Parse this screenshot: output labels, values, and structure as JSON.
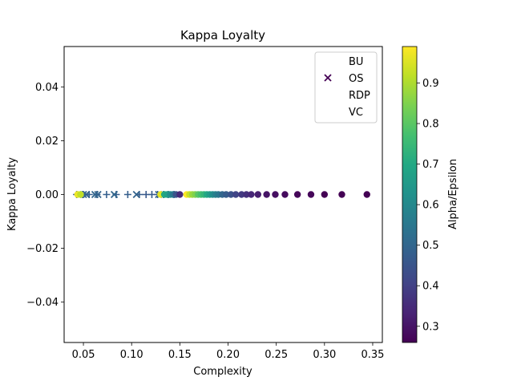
{
  "chart_data": {
    "type": "scatter",
    "title": "Kappa Loyalty",
    "xlabel": "Complexity",
    "ylabel": "Kappa Loyalty",
    "xlim": [
      0.03,
      0.36
    ],
    "ylim": [
      -0.055,
      0.055
    ],
    "xticks": [
      "0.05",
      "0.10",
      "0.15",
      "0.20",
      "0.25",
      "0.30",
      "0.35"
    ],
    "yticks": [
      "−0.04",
      "−0.02",
      "0.00",
      "0.02",
      "0.04"
    ],
    "grid": false,
    "legend_position": "top-right",
    "colorbar": {
      "label": "Alpha/Epsilon",
      "range": [
        0.26,
        0.99
      ],
      "ticks": [
        "0.3",
        "0.4",
        "0.5",
        "0.6",
        "0.7",
        "0.8",
        "0.9"
      ],
      "colormap": "viridis"
    },
    "series": [
      {
        "name": "BU",
        "marker": "plus",
        "points": [
          {
            "x": 0.043,
            "y": 0,
            "c": 0.46
          },
          {
            "x": 0.049,
            "y": 0,
            "c": 0.47
          },
          {
            "x": 0.056,
            "y": 0,
            "c": 0.48
          },
          {
            "x": 0.064,
            "y": 0,
            "c": 0.47
          },
          {
            "x": 0.074,
            "y": 0,
            "c": 0.48
          },
          {
            "x": 0.084,
            "y": 0,
            "c": 0.47
          },
          {
            "x": 0.096,
            "y": 0,
            "c": 0.48
          },
          {
            "x": 0.108,
            "y": 0,
            "c": 0.47
          },
          {
            "x": 0.115,
            "y": 0,
            "c": 0.46
          },
          {
            "x": 0.121,
            "y": 0,
            "c": 0.47
          },
          {
            "x": 0.127,
            "y": 0,
            "c": 0.46
          },
          {
            "x": 0.133,
            "y": 0,
            "c": 0.48
          },
          {
            "x": 0.138,
            "y": 0,
            "c": 0.47
          },
          {
            "x": 0.144,
            "y": 0,
            "c": 0.45
          }
        ]
      },
      {
        "name": "OS",
        "marker": "x",
        "points": [
          {
            "x": 0.046,
            "y": 0,
            "c": 0.49
          },
          {
            "x": 0.05,
            "y": 0,
            "c": 0.5
          },
          {
            "x": 0.053,
            "y": 0,
            "c": 0.49
          },
          {
            "x": 0.062,
            "y": 0,
            "c": 0.5
          },
          {
            "x": 0.065,
            "y": 0,
            "c": 0.49
          },
          {
            "x": 0.082,
            "y": 0,
            "c": 0.5
          },
          {
            "x": 0.105,
            "y": 0,
            "c": 0.49
          },
          {
            "x": 0.128,
            "y": 0,
            "c": 0.5
          },
          {
            "x": 0.141,
            "y": 0,
            "c": 0.49
          }
        ]
      },
      {
        "name": "RDP",
        "marker": "circle",
        "points": [
          {
            "x": 0.044,
            "y": 0,
            "c": 0.97
          },
          {
            "x": 0.047,
            "y": 0,
            "c": 0.92
          },
          {
            "x": 0.13,
            "y": 0,
            "c": 0.96
          },
          {
            "x": 0.134,
            "y": 0,
            "c": 0.7
          },
          {
            "x": 0.137,
            "y": 0,
            "c": 0.68
          },
          {
            "x": 0.14,
            "y": 0,
            "c": 0.62
          },
          {
            "x": 0.143,
            "y": 0,
            "c": 0.55
          },
          {
            "x": 0.146,
            "y": 0,
            "c": 0.45
          },
          {
            "x": 0.15,
            "y": 0,
            "c": 0.35
          },
          {
            "x": 0.157,
            "y": 0,
            "c": 0.99
          },
          {
            "x": 0.16,
            "y": 0,
            "c": 0.93
          },
          {
            "x": 0.163,
            "y": 0,
            "c": 0.88
          },
          {
            "x": 0.166,
            "y": 0,
            "c": 0.85
          },
          {
            "x": 0.169,
            "y": 0,
            "c": 0.8
          },
          {
            "x": 0.172,
            "y": 0,
            "c": 0.77
          },
          {
            "x": 0.175,
            "y": 0,
            "c": 0.74
          },
          {
            "x": 0.178,
            "y": 0,
            "c": 0.7
          },
          {
            "x": 0.181,
            "y": 0,
            "c": 0.66
          },
          {
            "x": 0.184,
            "y": 0,
            "c": 0.62
          },
          {
            "x": 0.187,
            "y": 0,
            "c": 0.58
          },
          {
            "x": 0.19,
            "y": 0,
            "c": 0.55
          },
          {
            "x": 0.194,
            "y": 0,
            "c": 0.5
          },
          {
            "x": 0.198,
            "y": 0,
            "c": 0.47
          },
          {
            "x": 0.203,
            "y": 0,
            "c": 0.44
          },
          {
            "x": 0.208,
            "y": 0,
            "c": 0.41
          },
          {
            "x": 0.214,
            "y": 0,
            "c": 0.38
          },
          {
            "x": 0.219,
            "y": 0,
            "c": 0.36
          },
          {
            "x": 0.224,
            "y": 0,
            "c": 0.34
          },
          {
            "x": 0.231,
            "y": 0,
            "c": 0.32
          },
          {
            "x": 0.24,
            "y": 0,
            "c": 0.3
          },
          {
            "x": 0.249,
            "y": 0,
            "c": 0.29
          },
          {
            "x": 0.259,
            "y": 0,
            "c": 0.28
          },
          {
            "x": 0.272,
            "y": 0,
            "c": 0.27
          },
          {
            "x": 0.286,
            "y": 0,
            "c": 0.27
          },
          {
            "x": 0.3,
            "y": 0,
            "c": 0.26
          },
          {
            "x": 0.318,
            "y": 0,
            "c": 0.26
          },
          {
            "x": 0.344,
            "y": 0,
            "c": 0.26
          }
        ]
      },
      {
        "name": "VC",
        "marker": "plus",
        "points": []
      }
    ]
  }
}
